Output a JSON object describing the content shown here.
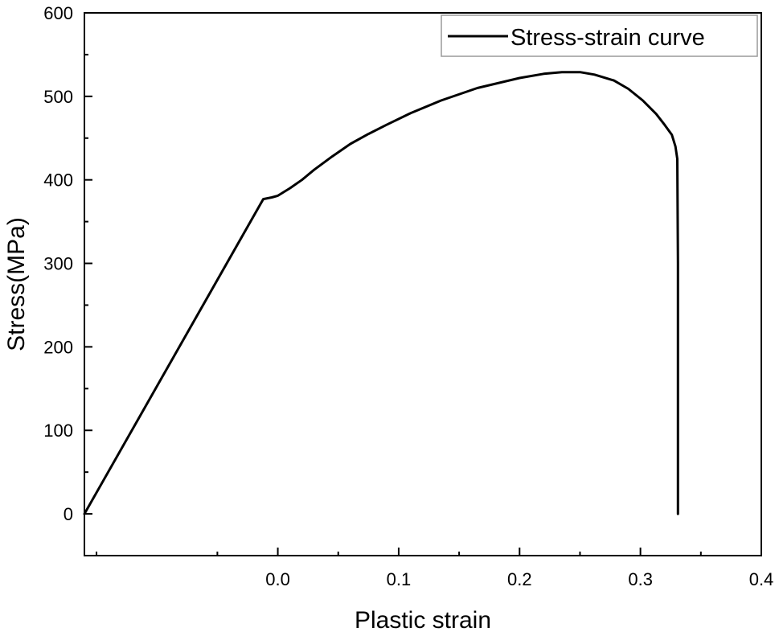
{
  "chart_data": {
    "type": "line",
    "title": "",
    "xlabel": "Plastic strain",
    "ylabel": "Stress(MPa)",
    "xlim": [
      -0.16,
      0.4
    ],
    "ylim": [
      -50,
      600
    ],
    "x_ticks": [
      0.0,
      0.1,
      0.2,
      0.3,
      0.4
    ],
    "x_tick_labels": [
      "0.0",
      "0.1",
      "0.2",
      "0.3",
      "0.4"
    ],
    "y_ticks": [
      0,
      100,
      200,
      300,
      400,
      500,
      600
    ],
    "y_tick_labels": [
      "0",
      "100",
      "200",
      "300",
      "400",
      "500",
      "600"
    ],
    "grid": false,
    "legend_position": "top-right",
    "colors": {
      "line": "#000000",
      "axis": "#000000"
    },
    "series": [
      {
        "name": "Stress-strain curve",
        "x": [
          -0.16,
          -0.012,
          -0.005,
          0.0,
          0.01,
          0.02,
          0.03,
          0.045,
          0.06,
          0.075,
          0.09,
          0.11,
          0.135,
          0.165,
          0.2,
          0.22,
          0.235,
          0.25,
          0.262,
          0.278,
          0.29,
          0.302,
          0.313,
          0.32,
          0.326,
          0.329,
          0.3305,
          0.331,
          0.331
        ],
        "y": [
          0,
          377,
          379,
          381,
          390,
          400,
          412,
          428,
          443,
          455,
          466,
          480,
          495,
          510,
          522,
          527,
          529,
          529,
          526,
          519,
          509,
          495,
          479,
          466,
          454,
          440,
          425,
          300,
          0
        ]
      }
    ]
  }
}
